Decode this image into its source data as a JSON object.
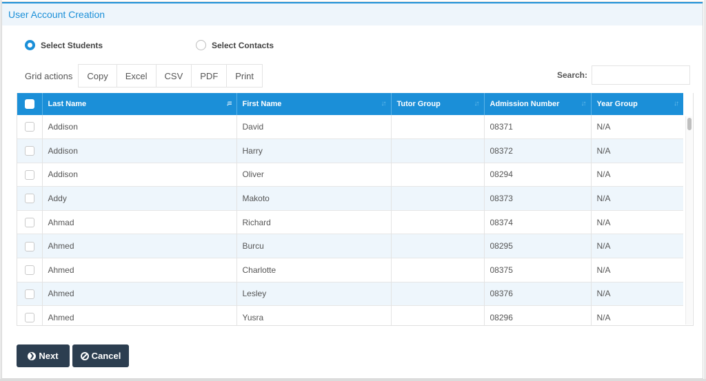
{
  "modal": {
    "title": "User Account Creation"
  },
  "selection": {
    "students_label": "Select Students",
    "contacts_label": "Select Contacts",
    "selected": "students"
  },
  "toolbar": {
    "grid_actions_label": "Grid actions",
    "buttons": [
      "Copy",
      "Excel",
      "CSV",
      "PDF",
      "Print"
    ],
    "search_label": "Search:",
    "search_value": ""
  },
  "table": {
    "columns": [
      "Last Name",
      "First Name",
      "Tutor Group",
      "Admission Number",
      "Year Group"
    ],
    "sorted_column": "Last Name",
    "rows": [
      {
        "last": "Addison",
        "first": "David",
        "tutor": "",
        "admission": "08371",
        "year": "N/A"
      },
      {
        "last": "Addison",
        "first": "Harry",
        "tutor": "",
        "admission": "08372",
        "year": "N/A"
      },
      {
        "last": "Addison",
        "first": "Oliver",
        "tutor": "",
        "admission": "08294",
        "year": "N/A"
      },
      {
        "last": "Addy",
        "first": "Makoto",
        "tutor": "",
        "admission": "08373",
        "year": "N/A"
      },
      {
        "last": "Ahmad",
        "first": "Richard",
        "tutor": "",
        "admission": "08374",
        "year": "N/A"
      },
      {
        "last": "Ahmed",
        "first": "Burcu",
        "tutor": "",
        "admission": "08295",
        "year": "N/A"
      },
      {
        "last": "Ahmed",
        "first": "Charlotte",
        "tutor": "",
        "admission": "08375",
        "year": "N/A"
      },
      {
        "last": "Ahmed",
        "first": "Lesley",
        "tutor": "",
        "admission": "08376",
        "year": "N/A"
      },
      {
        "last": "Ahmed",
        "first": "Yusra",
        "tutor": "",
        "admission": "08296",
        "year": "N/A"
      }
    ]
  },
  "footer": {
    "next_label": "Next",
    "cancel_label": "Cancel"
  },
  "colors": {
    "accent": "#1a8fd8",
    "header_bg": "#1b8fd8",
    "dark_button": "#2c3e50",
    "stripe": "#eef6fc"
  }
}
